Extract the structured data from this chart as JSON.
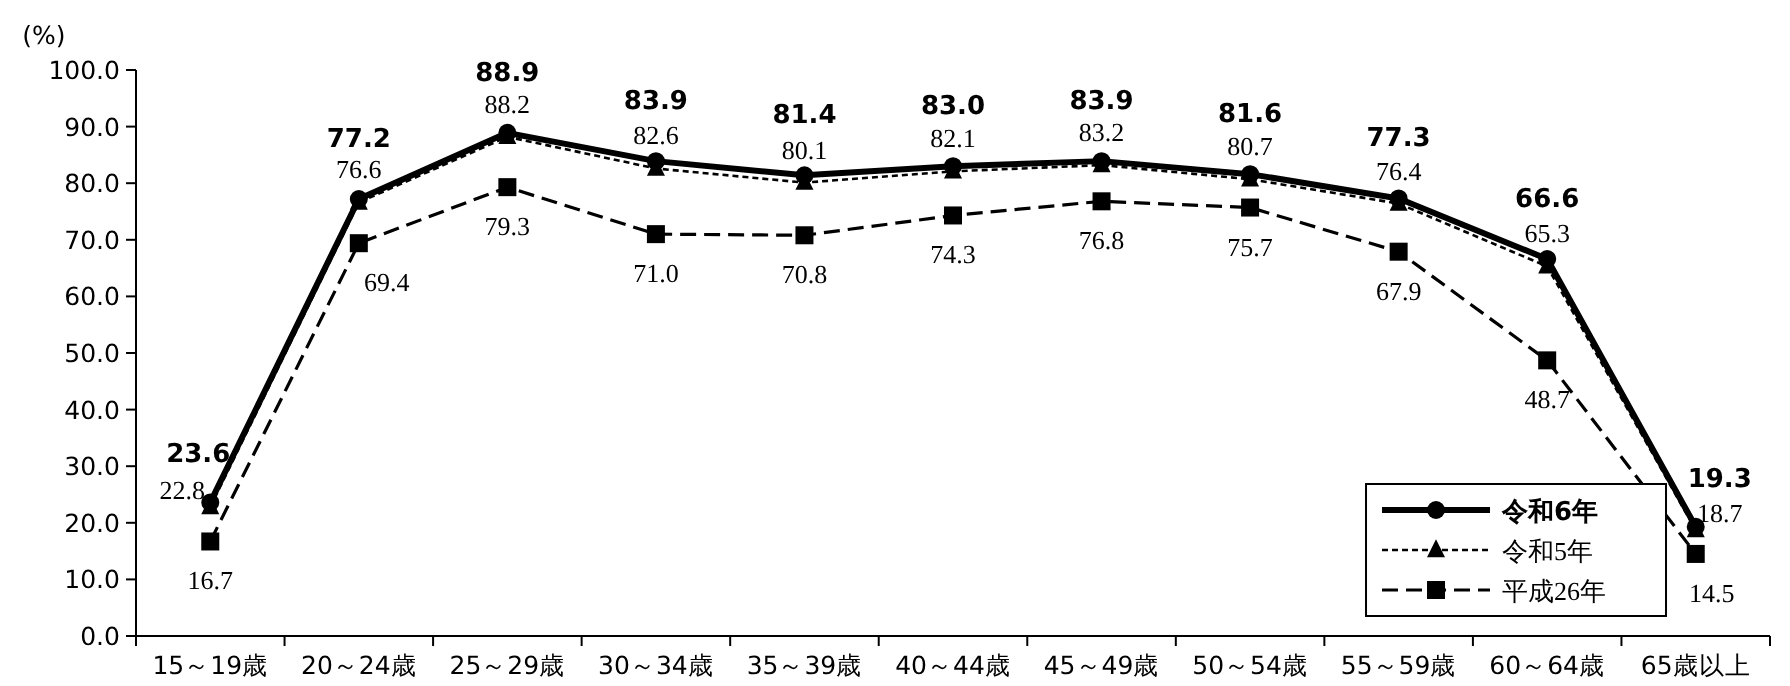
{
  "chart_data": {
    "type": "line",
    "ylabel": "(%)",
    "categories": [
      "15～19歳",
      "20～24歳",
      "25～29歳",
      "30～34歳",
      "35～39歳",
      "40～44歳",
      "45～49歳",
      "50～54歳",
      "55～59歳",
      "60～64歳",
      "65歳以上"
    ],
    "series": [
      {
        "name": "令和6年",
        "color": "#000000",
        "marker": "circle",
        "line_style": "solid",
        "values": [
          23.6,
          77.2,
          88.9,
          83.9,
          81.4,
          83.0,
          83.9,
          81.6,
          77.3,
          66.6,
          19.3
        ],
        "value_labels": [
          "23.6",
          "77.2",
          "88.9",
          "83.9",
          "81.4",
          "83.0",
          "83.9",
          "81.6",
          "77.3",
          "66.6",
          "19.3"
        ]
      },
      {
        "name": "令和5年",
        "color": "#000000",
        "marker": "triangle",
        "line_style": "dotted",
        "values": [
          22.8,
          76.6,
          88.2,
          82.6,
          80.1,
          82.1,
          83.2,
          80.7,
          76.4,
          65.3,
          18.7
        ],
        "value_labels": [
          "22.8",
          "76.6",
          "88.2",
          "82.6",
          "80.1",
          "82.1",
          "83.2",
          "80.7",
          "76.4",
          "65.3",
          "18.7"
        ]
      },
      {
        "name": "平成26年",
        "color": "#000000",
        "marker": "square",
        "line_style": "dashed",
        "values": [
          16.7,
          69.4,
          79.3,
          71.0,
          70.8,
          74.3,
          76.8,
          75.7,
          67.9,
          48.7,
          14.5
        ],
        "value_labels": [
          "16.7",
          "69.4",
          "79.3",
          "71.0",
          "70.8",
          "74.3",
          "76.8",
          "75.7",
          "67.9",
          "48.7",
          "14.5"
        ]
      }
    ],
    "ylim": [
      0,
      100
    ],
    "yticks": [
      {
        "value": 0,
        "label": "0.0"
      },
      {
        "value": 10,
        "label": "10.0"
      },
      {
        "value": 20,
        "label": "20.0"
      },
      {
        "value": 30,
        "label": "30.0"
      },
      {
        "value": 40,
        "label": "40.0"
      },
      {
        "value": 50,
        "label": "50.0"
      },
      {
        "value": 60,
        "label": "60.0"
      },
      {
        "value": 70,
        "label": "70.0"
      },
      {
        "value": 80,
        "label": "80.0"
      },
      {
        "value": 90,
        "label": "90.0"
      },
      {
        "value": 100,
        "label": "100.0"
      }
    ],
    "legend": "bottom right",
    "grid": false
  }
}
